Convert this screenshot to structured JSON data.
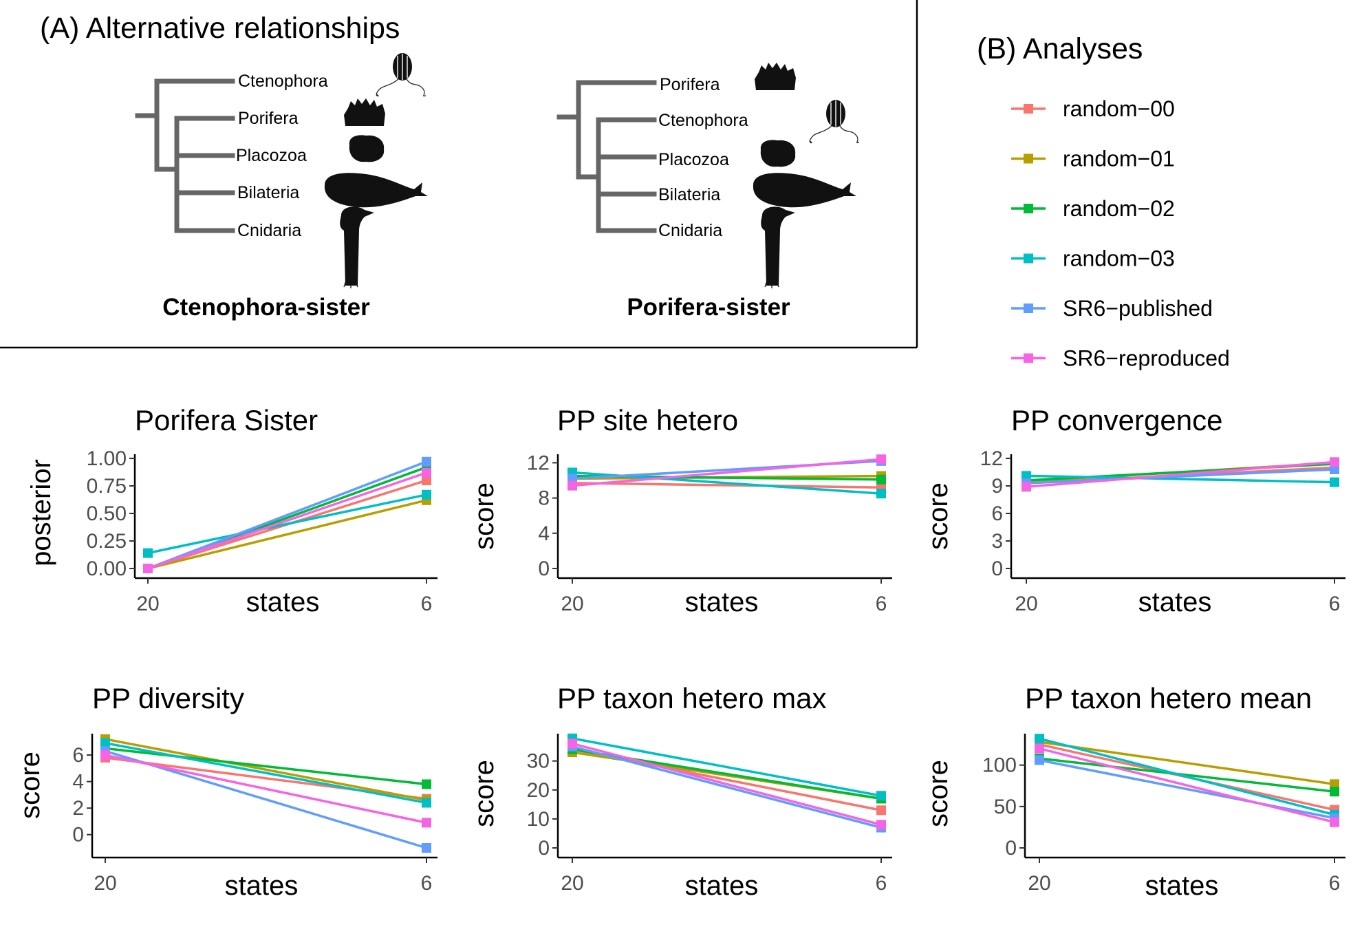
{
  "panel_a": {
    "title": "(A) Alternative relationships",
    "trees": [
      {
        "name": "Ctenophora-sister",
        "taxa": [
          "Ctenophora",
          "Porifera",
          "Placozoa",
          "Bilateria",
          "Cnidaria"
        ]
      },
      {
        "name": "Porifera-sister",
        "taxa": [
          "Porifera",
          "Ctenophora",
          "Placozoa",
          "Bilateria",
          "Cnidaria"
        ]
      }
    ],
    "silhouettes": {
      "Ctenophora": "comb-jelly-icon",
      "Porifera": "sponge-icon",
      "Placozoa": "placozoan-icon",
      "Bilateria": "whale-icon",
      "Cnidaria": "sea-anemone-icon"
    }
  },
  "panel_b": {
    "title": "(B) Analyses",
    "legend": [
      {
        "name": "random−00",
        "color": "#F8766D"
      },
      {
        "name": "random−01",
        "color": "#B79F00"
      },
      {
        "name": "random−02",
        "color": "#00BA38"
      },
      {
        "name": "random−03",
        "color": "#00BFC4"
      },
      {
        "name": "SR6−published",
        "color": "#619CFF"
      },
      {
        "name": "SR6−reproduced",
        "color": "#F564E3"
      }
    ]
  },
  "chart_data": [
    {
      "type": "line",
      "title": "Porifera Sister",
      "xlabel": "states",
      "ylabel": "posterior",
      "categories": [
        "20",
        "6"
      ],
      "ylim": [
        0,
        1.0
      ],
      "yticks": [
        "0.00",
        "0.25",
        "0.50",
        "0.75",
        "1.00"
      ],
      "ytick_values": [
        0,
        0.25,
        0.5,
        0.75,
        1.0
      ],
      "series": [
        {
          "name": "random−00",
          "values": [
            0.0,
            0.8
          ]
        },
        {
          "name": "random−01",
          "values": [
            0.0,
            0.62
          ]
        },
        {
          "name": "random−02",
          "values": [
            0.0,
            0.92
          ]
        },
        {
          "name": "random−03",
          "values": [
            0.14,
            0.67
          ]
        },
        {
          "name": "SR6−published",
          "values": [
            0.0,
            0.97
          ]
        },
        {
          "name": "SR6−reproduced",
          "values": [
            0.0,
            0.87
          ]
        }
      ]
    },
    {
      "type": "line",
      "title": "PP site hetero",
      "xlabel": "states",
      "ylabel": "score",
      "categories": [
        "20",
        "6"
      ],
      "ylim": [
        0,
        12.5
      ],
      "yticks": [
        "0",
        "4",
        "8",
        "12"
      ],
      "ytick_values": [
        0,
        4,
        8,
        12
      ],
      "series": [
        {
          "name": "random−00",
          "values": [
            9.7,
            9.2
          ]
        },
        {
          "name": "random−01",
          "values": [
            10.2,
            10.5
          ]
        },
        {
          "name": "random−02",
          "values": [
            10.5,
            10.1
          ]
        },
        {
          "name": "random−03",
          "values": [
            10.9,
            8.5
          ]
        },
        {
          "name": "SR6−published",
          "values": [
            10.2,
            12.2
          ]
        },
        {
          "name": "SR6−reproduced",
          "values": [
            9.4,
            12.4
          ]
        }
      ]
    },
    {
      "type": "line",
      "title": "PP convergence",
      "xlabel": "states",
      "ylabel": "score",
      "categories": [
        "20",
        "6"
      ],
      "ylim": [
        0,
        12
      ],
      "yticks": [
        "0",
        "3",
        "6",
        "9",
        "12"
      ],
      "ytick_values": [
        0,
        3,
        6,
        9,
        12
      ],
      "series": [
        {
          "name": "random−00",
          "values": [
            9.3,
            11.0
          ]
        },
        {
          "name": "random−01",
          "values": [
            9.5,
            11.5
          ]
        },
        {
          "name": "random−02",
          "values": [
            9.6,
            11.4
          ]
        },
        {
          "name": "random−03",
          "values": [
            10.1,
            9.4
          ]
        },
        {
          "name": "SR6−published",
          "values": [
            9.3,
            10.8
          ]
        },
        {
          "name": "SR6−reproduced",
          "values": [
            8.9,
            11.6
          ]
        }
      ]
    },
    {
      "type": "line",
      "title": "PP diversity",
      "xlabel": "states",
      "ylabel": "score",
      "categories": [
        "20",
        "6"
      ],
      "ylim": [
        -1.0,
        7.3
      ],
      "yticks": [
        "0",
        "2",
        "4",
        "6"
      ],
      "ytick_values": [
        0,
        2,
        4,
        6
      ],
      "series": [
        {
          "name": "random−00",
          "values": [
            5.8,
            2.7
          ]
        },
        {
          "name": "random−01",
          "values": [
            7.2,
            2.6
          ]
        },
        {
          "name": "random−02",
          "values": [
            6.5,
            3.8
          ]
        },
        {
          "name": "random−03",
          "values": [
            6.9,
            2.4
          ]
        },
        {
          "name": "SR6−published",
          "values": [
            6.3,
            -1.0
          ]
        },
        {
          "name": "SR6−reproduced",
          "values": [
            6.0,
            0.9
          ]
        }
      ]
    },
    {
      "type": "line",
      "title": "PP taxon hetero max",
      "xlabel": "states",
      "ylabel": "score",
      "categories": [
        "20",
        "6"
      ],
      "ylim": [
        0,
        38
      ],
      "yticks": [
        "0",
        "10",
        "20",
        "30"
      ],
      "ytick_values": [
        0,
        10,
        20,
        30
      ],
      "series": [
        {
          "name": "random−00",
          "values": [
            34.0,
            13.0
          ]
        },
        {
          "name": "random−01",
          "values": [
            33.0,
            17.0
          ]
        },
        {
          "name": "random−02",
          "values": [
            34.0,
            17.0
          ]
        },
        {
          "name": "random−03",
          "values": [
            37.8,
            18.0
          ]
        },
        {
          "name": "SR6−published",
          "values": [
            35.0,
            7.0
          ]
        },
        {
          "name": "SR6−reproduced",
          "values": [
            36.0,
            8.0
          ]
        }
      ]
    },
    {
      "type": "line",
      "title": "PP taxon hetero mean",
      "xlabel": "states",
      "ylabel": "score",
      "categories": [
        "20",
        "6"
      ],
      "ylim": [
        0,
        133
      ],
      "yticks": [
        "0",
        "50",
        "100"
      ],
      "ytick_values": [
        0,
        50,
        100
      ],
      "series": [
        {
          "name": "random−00",
          "values": [
            125,
            46
          ]
        },
        {
          "name": "random−01",
          "values": [
            128,
            77
          ]
        },
        {
          "name": "random−02",
          "values": [
            108,
            68
          ]
        },
        {
          "name": "random−03",
          "values": [
            132,
            40
          ]
        },
        {
          "name": "SR6−published",
          "values": [
            106,
            36
          ]
        },
        {
          "name": "SR6−reproduced",
          "values": [
            120,
            31
          ]
        }
      ]
    }
  ]
}
